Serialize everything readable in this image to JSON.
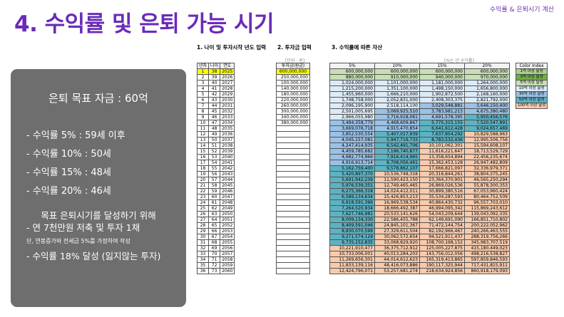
{
  "app_title": "수익률 & 은퇴시기 계산",
  "page_title": "4. 수익률 및 은퇴 가능 시기",
  "panel": {
    "goal": "은퇴 목표 자금 : 60억",
    "items": [
      "- 수익률  5% : 59세 이후",
      "- 수익률 10% : 50세",
      "- 수익률 15% : 48세",
      "- 수익률 20% : 46세"
    ],
    "message": "목표 은퇴시기를 달성하기 위해",
    "plan": "- 연 7천만원 저축 및 투자 1채",
    "assumption": "단, 연봉증가와 전세금 5%를 가정하여 작성",
    "target": "- 수익률 18% 달성 (잃지않는 투자)"
  },
  "steps": {
    "step1": "1. 나이 및 투자시작 년도 입력",
    "step2": "2. 투자금 입력",
    "step3": "3. 수익률에 따른 자산"
  },
  "notes": {
    "unit": "[단위 : 원]",
    "rate_unit": "[%는 년 수익률]"
  },
  "colors": {
    "c1": "#a9d08e",
    "c3": "#70ad47",
    "c5": "#c6e0b4",
    "c10": "#ddebf7",
    "c30": "#9bc2e6",
    "c50": "#5eb3c3",
    "c100": "#f8cbad"
  },
  "table_headers": {
    "left": [
      "년차",
      "나이",
      "연도"
    ],
    "invest": "투자금(원금)",
    "rates": [
      "5%",
      "10%",
      "15%",
      "20%"
    ],
    "color_index": "Color Index"
  },
  "color_index": [
    {
      "label": "1억 이상 달성",
      "color": "#a9d08e"
    },
    {
      "label": "3억 이상 달성",
      "color": "#70ad47"
    },
    {
      "label": "5억 이상 달성",
      "color": "#c6e0b4"
    },
    {
      "label": "10억 이상 달성",
      "color": "#ddebf7"
    },
    {
      "label": "30억 이상 달성",
      "color": "#9bc2e6"
    },
    {
      "label": "50억 이상 달성",
      "color": "#5eb3c3"
    },
    {
      "label": "100억 이상 달성",
      "color": "#f8cbad"
    }
  ],
  "rows": [
    [
      "1",
      "38",
      "2025"
    ],
    [
      "2",
      "39",
      "2026"
    ],
    [
      "3",
      "40",
      "2027"
    ],
    [
      "4",
      "41",
      "2028"
    ],
    [
      "5",
      "42",
      "2029"
    ],
    [
      "6",
      "43",
      "2030"
    ],
    [
      "7",
      "44",
      "2031"
    ],
    [
      "8",
      "45",
      "2032"
    ],
    [
      "9",
      "46",
      "2033"
    ],
    [
      "10",
      "47",
      "2034"
    ],
    [
      "11",
      "48",
      "2035"
    ],
    [
      "12",
      "49",
      "2036"
    ],
    [
      "13",
      "50",
      "2037"
    ],
    [
      "14",
      "51",
      "2038"
    ],
    [
      "15",
      "52",
      "2039"
    ],
    [
      "16",
      "53",
      "2040"
    ],
    [
      "17",
      "54",
      "2041"
    ],
    [
      "18",
      "55",
      "2042"
    ],
    [
      "19",
      "56",
      "2043"
    ],
    [
      "20",
      "57",
      "2044"
    ],
    [
      "21",
      "58",
      "2045"
    ],
    [
      "22",
      "59",
      "2046"
    ],
    [
      "23",
      "60",
      "2047"
    ],
    [
      "24",
      "61",
      "2048"
    ],
    [
      "25",
      "62",
      "2049"
    ],
    [
      "26",
      "63",
      "2050"
    ],
    [
      "27",
      "64",
      "2051"
    ],
    [
      "28",
      "65",
      "2052"
    ],
    [
      "29",
      "66",
      "2053"
    ],
    [
      "30",
      "67",
      "2054"
    ],
    [
      "31",
      "68",
      "2055"
    ],
    [
      "32",
      "69",
      "2056"
    ],
    [
      "33",
      "70",
      "2057"
    ],
    [
      "34",
      "71",
      "2058"
    ],
    [
      "35",
      "72",
      "2059"
    ],
    [
      "36",
      "73",
      "2060"
    ]
  ],
  "invest": [
    "600,000,000",
    "250,000,000",
    "100,000,000",
    "140,000,000",
    "180,000,000",
    "220,000,000",
    "260,000,000",
    "300,000,000",
    "340,000,000",
    "380,000,000"
  ],
  "assets": [
    [
      "600,000,000",
      "600,000,000",
      "600,000,000",
      "600,000,000"
    ],
    [
      "880,000,000",
      "910,000,000",
      "940,000,000",
      "970,000,000"
    ],
    [
      "1,024,000,000",
      "1,101,000,000",
      "1,181,000,000",
      "1,264,000,000"
    ],
    [
      "1,215,200,000",
      "1,351,100,000",
      "1,498,150,000",
      "1,656,800,000"
    ],
    [
      "1,455,960,000",
      "1,666,210,000",
      "1,902,872,500",
      "2,168,160,000"
    ],
    [
      "1,748,758,000",
      "2,052,831,000",
      "2,408,303,375",
      "2,821,792,000"
    ],
    [
      "2,096,195,900",
      "2,518,114,100",
      "3,029,548,881",
      "3,646,150,400"
    ],
    [
      "2,501,005,695",
      "3,069,925,510",
      "3,783,981,213",
      "4,675,380,480"
    ],
    [
      "2,966,055,980",
      "3,716,918,061",
      "4,691,578,395",
      "5,950,456,576"
    ],
    [
      "3,494,358,779",
      "4,468,609,867",
      "5,775,315,155",
      "7,520,547,891"
    ],
    [
      "3,669,076,718",
      "4,915,470,854",
      "6,641,612,428",
      "9,024,657,469"
    ],
    [
      "3,852,530,554",
      "5,407,017,939",
      "7,637,854,292",
      "10,829,588,963"
    ],
    [
      "4,045,157,081",
      "5,947,719,733",
      "8,783,532,436",
      "12,995,506,756"
    ],
    [
      "4,247,414,935",
      "6,542,491,706",
      "10,101,062,301",
      "15,594,608,107"
    ],
    [
      "4,459,785,682",
      "7,196,740,877",
      "11,616,221,647",
      "18,713,529,729"
    ],
    [
      "4,682,774,966",
      "7,916,414,965",
      "13,358,654,894",
      "22,456,235,674"
    ],
    [
      "4,916,913,714",
      "8,708,056,461",
      "15,362,453,128",
      "26,947,482,809"
    ],
    [
      "5,162,759,400",
      "9,578,862,107",
      "17,666,821,097",
      "32,336,979,371"
    ],
    [
      "5,420,897,370",
      "10,536,748,318",
      "20,316,844,261",
      "38,804,375,245"
    ],
    [
      "5,691,942,239",
      "11,590,423,150",
      "23,364,370,901",
      "46,565,250,294"
    ],
    [
      "5,976,539,351",
      "12,749,465,465",
      "26,869,026,536",
      "55,878,300,353"
    ],
    [
      "6,275,366,318",
      "14,024,412,011",
      "30,899,380,516",
      "67,053,960,424"
    ],
    [
      "6,589,134,634",
      "15,426,853,213",
      "35,534,287,593",
      "80,464,752,509"
    ],
    [
      "6,918,591,366",
      "16,969,538,534",
      "40,864,430,732",
      "96,557,703,010"
    ],
    [
      "7,264,520,934",
      "18,666,492,387",
      "46,994,095,342",
      "115,869,243,612"
    ],
    [
      "7,627,746,981",
      "20,533,141,626",
      "54,043,209,644",
      "139,043,092,335"
    ],
    [
      "8,009,134,330",
      "22,586,455,788",
      "62,149,691,090",
      "166,851,710,802"
    ],
    [
      "8,409,591,046",
      "24,845,101,367",
      "71,472,144,754",
      "200,222,052,962"
    ],
    [
      "8,830,070,599",
      "27,329,611,504",
      "82,192,966,467",
      "240,266,463,555"
    ],
    [
      "9,271,574,129",
      "30,062,572,654",
      "94,521,911,437",
      "288,319,756,266"
    ],
    [
      "9,735,152,835",
      "33,068,829,920",
      "108,700,198,152",
      "345,983,707,519"
    ],
    [
      "10,221,910,477",
      "36,375,712,912",
      "125,005,227,875",
      "415,180,449,023"
    ],
    [
      "10,733,006,001",
      "40,013,284,203",
      "143,756,012,056",
      "498,216,538,827"
    ],
    [
      "11,269,656,301",
      "44,014,612,623",
      "165,319,413,865",
      "597,859,846,593"
    ],
    [
      "11,833,139,116",
      "48,416,073,886",
      "190,117,325,944",
      "717,431,815,911"
    ],
    [
      "12,424,796,071",
      "53,257,681,274",
      "218,634,924,856",
      "860,918,179,093"
    ]
  ]
}
